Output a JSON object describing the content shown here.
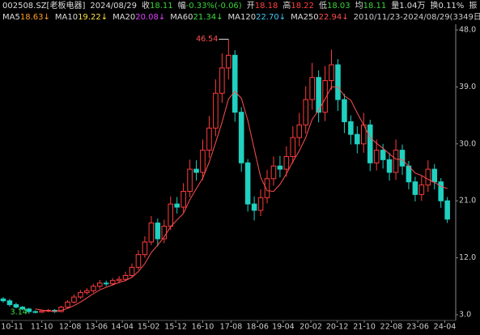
{
  "header": {
    "code": "002508.SZ[老板电器]",
    "date": "2024/08/29",
    "quote": [
      {
        "label": "收",
        "value": "18.11",
        "color": "#3cd23c"
      },
      {
        "label": "幅",
        "value": "-0.33%(-0.06)",
        "color": "#3cd23c"
      },
      {
        "label": "开",
        "value": "18.18",
        "color": "#ff4040"
      },
      {
        "label": "高",
        "value": "18.22",
        "color": "#ff4040"
      },
      {
        "label": "低",
        "value": "18.03",
        "color": "#3cd23c"
      },
      {
        "label": "均",
        "value": "18.11",
        "color": "#3cd23c"
      },
      {
        "label": "量",
        "value": "1.04万",
        "color": "#dddddd"
      },
      {
        "label": "换",
        "value": "0.11%",
        "color": "#dddddd"
      },
      {
        "label": "振",
        "value": "",
        "color": "#dddddd"
      }
    ],
    "ma": [
      {
        "name": "MA5",
        "value": "18.63↓",
        "color": "#ffa020"
      },
      {
        "name": "MA10",
        "value": "19.22↓",
        "color": "#ffe040"
      },
      {
        "name": "MA20",
        "value": "20.08↓",
        "color": "#e040ff"
      },
      {
        "name": "MA60",
        "value": "21.34↓",
        "color": "#40e040"
      },
      {
        "name": "MA120",
        "value": "22.70↓",
        "color": "#40c8ff"
      },
      {
        "name": "MA250",
        "value": "22.94↓",
        "color": "#ff5050"
      }
    ],
    "range": "2010/11/23-2024/08/29(3349日)"
  },
  "chart_data": {
    "type": "candlestick",
    "up_color": "#ff3c3c",
    "down_color": "#20d0c0",
    "open": [
      5.5,
      5.2,
      4.6,
      4.2,
      3.9,
      3.5,
      3.4,
      3.6,
      3.7,
      3.5,
      4.2,
      5.0,
      5.8,
      6.5,
      6.8,
      7.5,
      8.0,
      7.9,
      8.4,
      8.6,
      9.2,
      10.5,
      12.5,
      14.5,
      17.5,
      15.0,
      17.0,
      20.5,
      20.0,
      22.5,
      26.0,
      25.5,
      29.0,
      32.5,
      38.0,
      42.0,
      44.0,
      35.0,
      27.0,
      20.5,
      19.5,
      21.5,
      24.5,
      26.5,
      26.0,
      28.0,
      31.0,
      33.0,
      37.0,
      40.5,
      35.0,
      40.0,
      42.5,
      37.0,
      33.5,
      31.5,
      30.0,
      33.0,
      27.0,
      29.0,
      27.5,
      25.5,
      29.0,
      26.5,
      24.0,
      22.0,
      23.5,
      26.0,
      24.0,
      21.0
    ],
    "high": [
      5.8,
      5.5,
      4.9,
      4.4,
      4.1,
      3.7,
      3.8,
      3.9,
      3.9,
      4.4,
      5.3,
      6.2,
      6.9,
      7.2,
      7.9,
      8.5,
      8.4,
      8.8,
      9.1,
      9.8,
      11.1,
      13.2,
      15.4,
      18.6,
      18.2,
      18.0,
      21.7,
      21.6,
      23.8,
      27.5,
      27.4,
      30.7,
      34.4,
      40.2,
      44.3,
      46.54,
      44.8,
      35.8,
      27.6,
      21.7,
      22.8,
      25.9,
      28.0,
      28.1,
      29.6,
      32.8,
      34.9,
      39.1,
      42.8,
      41.6,
      42.3,
      44.9,
      43.4,
      37.9,
      34.5,
      32.8,
      34.9,
      33.8,
      30.7,
      30.0,
      28.6,
      30.7,
      29.9,
      27.3,
      24.8,
      24.9,
      27.4,
      26.8,
      24.6,
      21.6
    ],
    "low": [
      4.9,
      4.3,
      4.0,
      3.7,
      3.14,
      3.2,
      3.3,
      3.4,
      3.3,
      3.4,
      4.0,
      4.8,
      5.5,
      6.2,
      6.5,
      7.1,
      7.5,
      7.6,
      8.0,
      8.3,
      8.9,
      10.1,
      12.0,
      14.0,
      13.8,
      14.3,
      16.4,
      19.0,
      19.2,
      21.6,
      24.2,
      24.3,
      27.8,
      31.2,
      36.5,
      40.2,
      33.5,
      25.6,
      19.3,
      17.9,
      18.6,
      20.6,
      23.4,
      24.7,
      24.8,
      26.9,
      29.6,
      31.6,
      35.4,
      33.4,
      33.6,
      38.5,
      35.2,
      31.7,
      29.9,
      28.5,
      28.6,
      25.7,
      25.8,
      26.1,
      24.2,
      24.3,
      25.1,
      22.8,
      20.9,
      21.0,
      22.4,
      22.8,
      19.9,
      17.5
    ],
    "close": [
      5.2,
      4.6,
      4.2,
      3.9,
      3.5,
      3.4,
      3.6,
      3.7,
      3.5,
      4.2,
      5.0,
      5.8,
      6.5,
      6.8,
      7.5,
      8.0,
      7.9,
      8.4,
      8.6,
      9.2,
      10.5,
      12.5,
      14.5,
      17.5,
      15.0,
      17.0,
      20.5,
      20.0,
      22.5,
      26.0,
      25.5,
      29.0,
      32.5,
      38.0,
      42.0,
      44.0,
      35.0,
      27.0,
      20.5,
      19.5,
      21.5,
      24.5,
      26.5,
      26.0,
      28.0,
      31.0,
      33.0,
      37.0,
      40.5,
      35.0,
      40.0,
      42.5,
      37.0,
      33.5,
      31.5,
      30.0,
      33.0,
      27.0,
      29.0,
      27.5,
      25.5,
      29.0,
      26.5,
      24.0,
      22.0,
      23.5,
      26.0,
      24.0,
      21.0,
      18.11
    ],
    "series": [
      {
        "name": "MA250",
        "color": "#ff5050",
        "values": [
          null,
          null,
          null,
          null,
          null,
          3.92,
          3.72,
          3.62,
          3.54,
          3.68,
          4.0,
          4.44,
          5.0,
          5.66,
          6.32,
          6.92,
          7.34,
          7.72,
          8.08,
          8.42,
          8.92,
          9.84,
          11.06,
          12.84,
          14.0,
          15.3,
          16.9,
          18.0,
          19.0,
          21.2,
          22.9,
          24.6,
          27.1,
          30.2,
          33.4,
          37.1,
          38.3,
          37.2,
          33.7,
          29.2,
          24.7,
          22.6,
          22.5,
          23.6,
          25.3,
          27.2,
          28.9,
          31.0,
          33.9,
          35.3,
          37.1,
          39.0,
          39.0,
          37.6,
          36.9,
          34.9,
          33.0,
          31.0,
          30.1,
          29.3,
          28.4,
          27.6,
          27.5,
          26.5,
          25.4,
          25.0,
          24.4,
          23.9,
          23.3,
          22.94
        ]
      }
    ],
    "xlim": [
      -0.5,
      70.3
    ],
    "xticks": [
      {
        "value": 1.4,
        "label": "10-11"
      },
      {
        "value": 6,
        "label": "11-10"
      },
      {
        "value": 10.4,
        "label": "12-08"
      },
      {
        "value": 14.5,
        "label": "13-06"
      },
      {
        "value": 18.5,
        "label": "14-04"
      },
      {
        "value": 22.6,
        "label": "15-02"
      },
      {
        "value": 26.8,
        "label": "15-12"
      },
      {
        "value": 31,
        "label": "16-10"
      },
      {
        "value": 35.4,
        "label": "17-08"
      },
      {
        "value": 39.5,
        "label": "18-06"
      },
      {
        "value": 43.5,
        "label": "19-04"
      },
      {
        "value": 47.8,
        "label": "20-02"
      },
      {
        "value": 51.9,
        "label": "20-12"
      },
      {
        "value": 56.1,
        "label": "21-10"
      },
      {
        "value": 60.3,
        "label": "22-08"
      },
      {
        "value": 64.4,
        "label": "23-06"
      },
      {
        "value": 68.6,
        "label": "24-04"
      }
    ],
    "ylim": [
      2.1,
      48.9
    ],
    "yticks": [
      {
        "value": 48,
        "label": "48.0"
      },
      {
        "value": 39,
        "label": "39.0"
      },
      {
        "value": 30,
        "label": "30.0"
      },
      {
        "value": 21,
        "label": "21.0"
      },
      {
        "value": 12,
        "label": "12.0"
      },
      {
        "value": 3,
        "label": "3.0"
      }
    ],
    "grid": false
  }
}
